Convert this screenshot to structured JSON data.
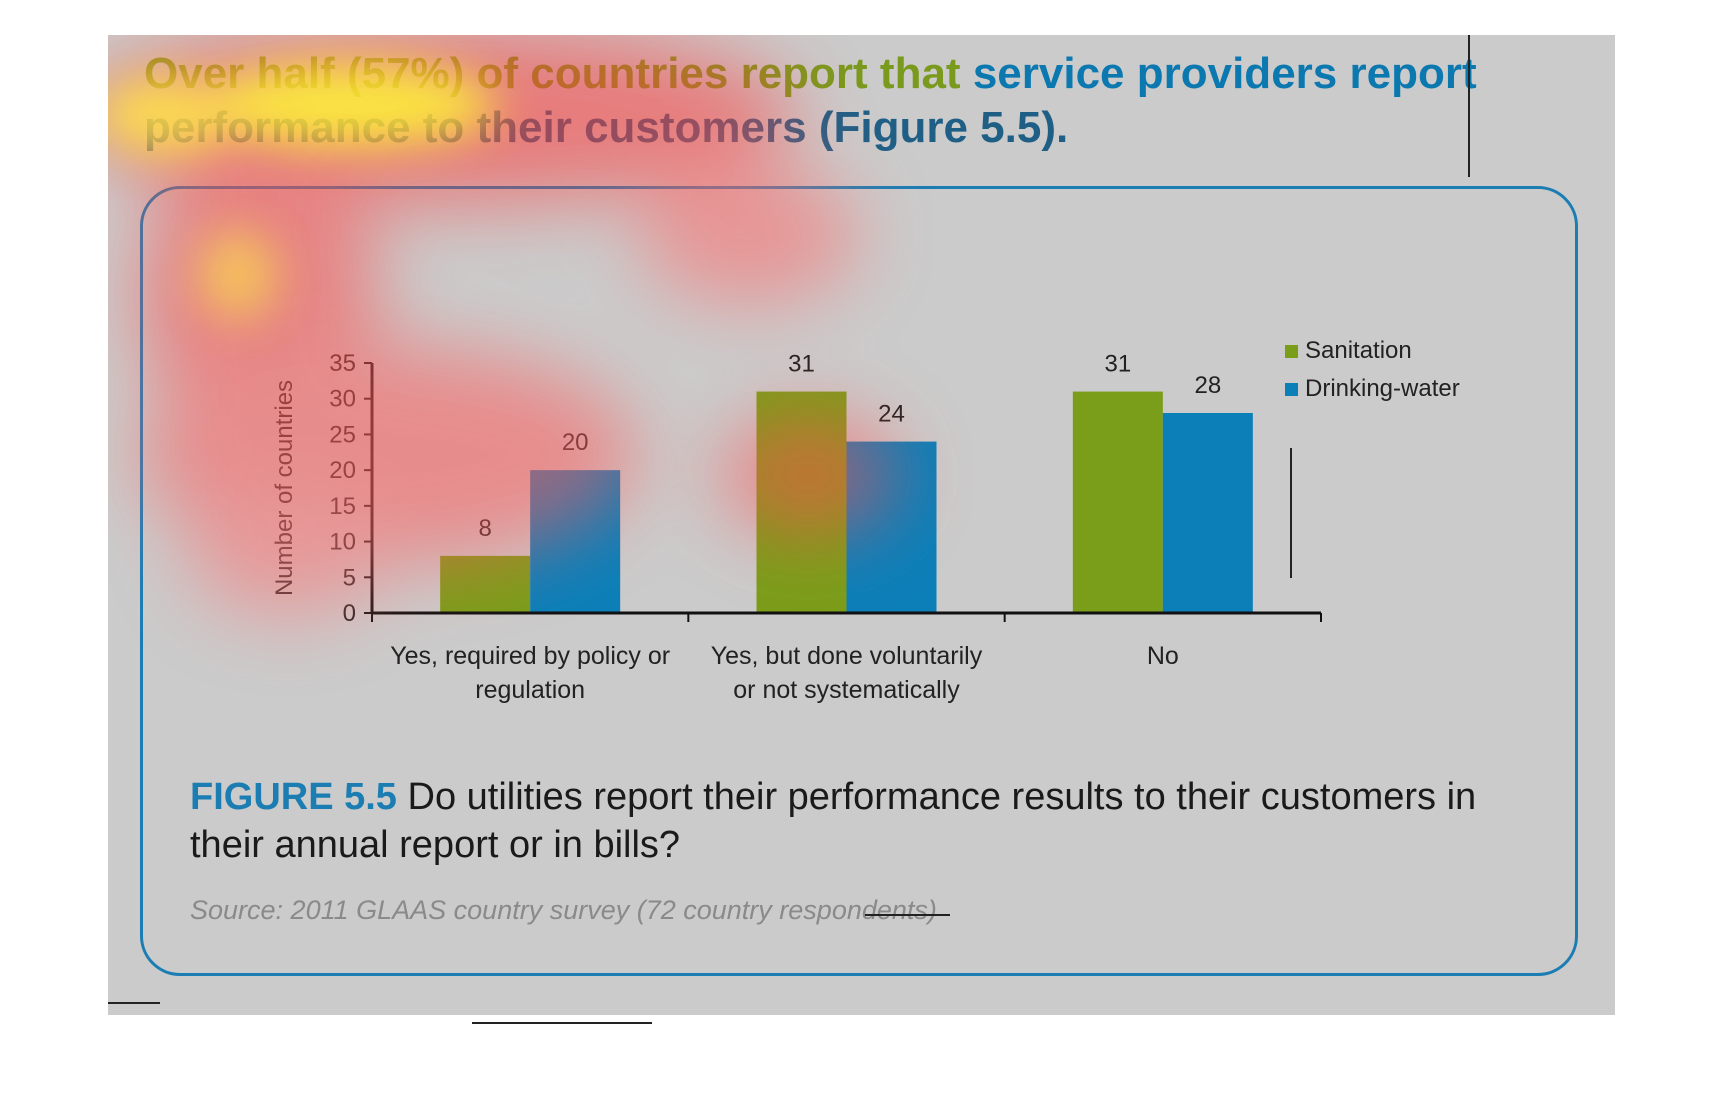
{
  "headline": {
    "part1": "Over half (57%) of countries report that ",
    "part2": "service providers report",
    "part3": "performance to their customers (Figure 5.5)."
  },
  "caption": {
    "label": "FIGURE 5.5",
    "text": " Do utilities report their performance results to their customers in their annual report or in bills?"
  },
  "source": "Source: 2011 GLAAS country survey (72 country respondents)",
  "colors": {
    "sanitation": "#7a9d1a",
    "drinking_water": "#0c7fb8",
    "frame": "#1c7db3",
    "slide_bg": "#cbcbcb"
  },
  "chart_data": {
    "type": "bar",
    "categories": [
      "Yes, required by policy or regulation",
      "Yes, but done voluntarily or not systematically",
      "No"
    ],
    "category_lines": [
      [
        "Yes, required by policy or",
        "regulation"
      ],
      [
        "Yes, but done voluntarily",
        "or not systematically"
      ],
      [
        "No"
      ]
    ],
    "series": [
      {
        "name": "Sanitation",
        "values": [
          8,
          31,
          31
        ]
      },
      {
        "name": "Drinking-water",
        "values": [
          20,
          24,
          28
        ]
      }
    ],
    "ylabel": "Number of countries",
    "ylim": [
      0,
      35
    ],
    "yticks": [
      0,
      5,
      10,
      15,
      20,
      25,
      30,
      35
    ],
    "data_labels": true,
    "grid": false,
    "legend_position": "top-right"
  }
}
